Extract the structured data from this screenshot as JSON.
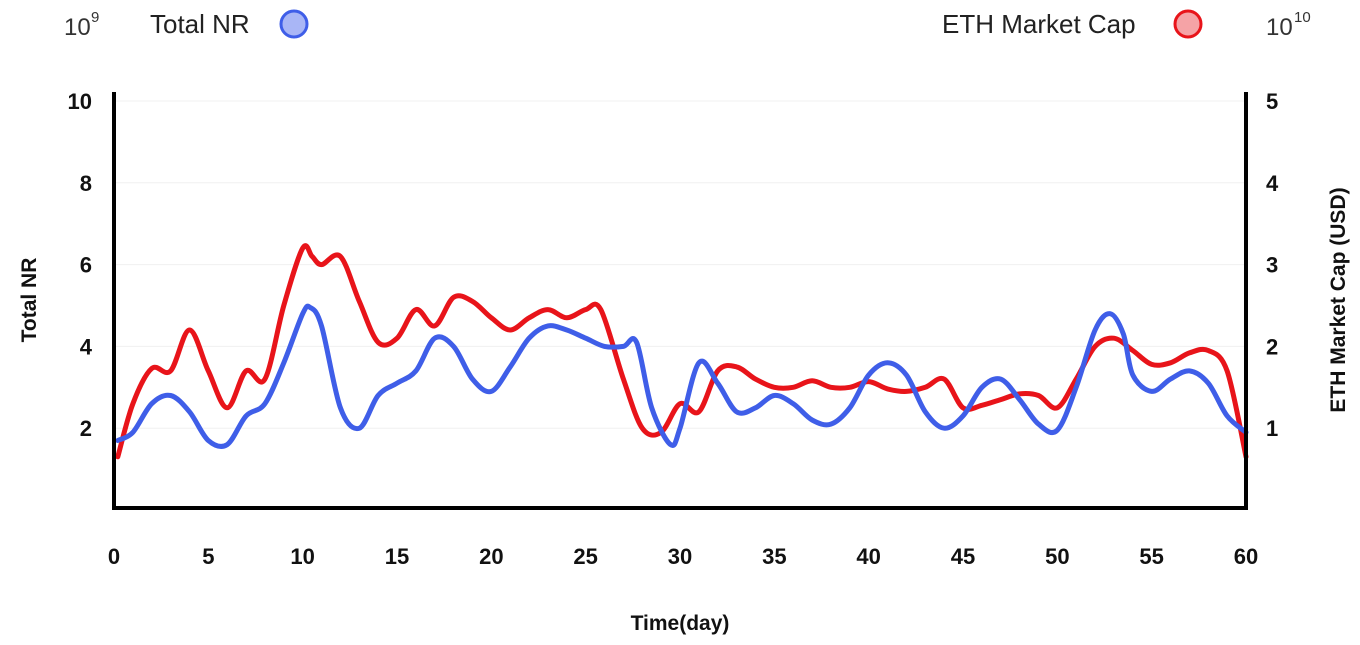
{
  "chart_data": {
    "type": "line",
    "xlabel": "Time(day)",
    "ylabel_left": "Total NR",
    "ylabel_right": "ETH Market Cap (USD)",
    "left_exponent": {
      "base": "10",
      "power": "9"
    },
    "right_exponent": {
      "base": "10",
      "power": "10"
    },
    "xlim": [
      0,
      60
    ],
    "ylim_left": [
      0,
      10
    ],
    "ylim_right": [
      0,
      5
    ],
    "x_ticks": [
      "0",
      "5",
      "10",
      "15",
      "20",
      "25",
      "30",
      "35",
      "40",
      "45",
      "50",
      "55",
      "60"
    ],
    "y_ticks_left": [
      "2",
      "4",
      "6",
      "8",
      "10"
    ],
    "y_ticks_right": [
      "1",
      "2",
      "3",
      "4",
      "5"
    ],
    "grid": "horizontal, faint",
    "legend_placement": "top",
    "series": [
      {
        "name": "Total NR",
        "axis": "left",
        "color": "#3f5ee8",
        "marker_fill": "#a9b6f6",
        "points": [
          [
            0.2,
            1.7
          ],
          [
            1,
            1.9
          ],
          [
            2,
            2.6
          ],
          [
            3,
            2.8
          ],
          [
            4,
            2.4
          ],
          [
            5,
            1.7
          ],
          [
            6,
            1.6
          ],
          [
            7,
            2.3
          ],
          [
            8,
            2.6
          ],
          [
            9,
            3.6
          ],
          [
            10,
            4.8
          ],
          [
            10.4,
            4.95
          ],
          [
            11,
            4.5
          ],
          [
            12,
            2.5
          ],
          [
            13,
            2.0
          ],
          [
            14,
            2.8
          ],
          [
            15,
            3.1
          ],
          [
            16,
            3.4
          ],
          [
            17,
            4.2
          ],
          [
            18,
            4.0
          ],
          [
            19,
            3.2
          ],
          [
            20,
            2.9
          ],
          [
            21,
            3.5
          ],
          [
            22,
            4.2
          ],
          [
            23,
            4.5
          ],
          [
            24,
            4.4
          ],
          [
            25,
            4.2
          ],
          [
            26,
            4.0
          ],
          [
            27,
            4.0
          ],
          [
            27.7,
            4.1
          ],
          [
            28.5,
            2.5
          ],
          [
            29.5,
            1.6
          ],
          [
            30,
            2.0
          ],
          [
            31,
            3.6
          ],
          [
            32,
            3.1
          ],
          [
            33,
            2.4
          ],
          [
            34,
            2.5
          ],
          [
            35,
            2.8
          ],
          [
            36,
            2.6
          ],
          [
            37,
            2.2
          ],
          [
            38,
            2.1
          ],
          [
            39,
            2.5
          ],
          [
            40,
            3.3
          ],
          [
            41,
            3.6
          ],
          [
            42,
            3.3
          ],
          [
            43,
            2.4
          ],
          [
            44,
            2.0
          ],
          [
            45,
            2.3
          ],
          [
            46,
            3.0
          ],
          [
            47,
            3.2
          ],
          [
            48,
            2.7
          ],
          [
            49,
            2.1
          ],
          [
            50,
            1.95
          ],
          [
            51,
            3.0
          ],
          [
            52,
            4.4
          ],
          [
            52.8,
            4.8
          ],
          [
            53.5,
            4.3
          ],
          [
            54,
            3.3
          ],
          [
            55,
            2.9
          ],
          [
            56,
            3.2
          ],
          [
            57,
            3.4
          ],
          [
            58,
            3.1
          ],
          [
            59,
            2.3
          ],
          [
            60,
            1.9
          ]
        ]
      },
      {
        "name": "ETH Market Cap",
        "axis": "right",
        "color": "#e8141a",
        "marker_fill": "#f5a3a6",
        "points": [
          [
            0.2,
            0.65
          ],
          [
            1,
            1.3
          ],
          [
            2,
            1.73
          ],
          [
            3,
            1.7
          ],
          [
            4,
            2.2
          ],
          [
            5,
            1.7
          ],
          [
            6,
            1.25
          ],
          [
            7,
            1.7
          ],
          [
            8,
            1.6
          ],
          [
            9,
            2.5
          ],
          [
            10,
            3.2
          ],
          [
            10.5,
            3.1
          ],
          [
            11,
            3.0
          ],
          [
            12,
            3.1
          ],
          [
            13,
            2.55
          ],
          [
            14,
            2.05
          ],
          [
            15,
            2.1
          ],
          [
            16,
            2.45
          ],
          [
            17,
            2.25
          ],
          [
            18,
            2.6
          ],
          [
            19,
            2.55
          ],
          [
            20,
            2.35
          ],
          [
            21,
            2.2
          ],
          [
            22,
            2.35
          ],
          [
            23,
            2.45
          ],
          [
            24,
            2.35
          ],
          [
            25,
            2.45
          ],
          [
            25.8,
            2.45
          ],
          [
            27,
            1.6
          ],
          [
            28,
            1.0
          ],
          [
            29,
            0.95
          ],
          [
            30,
            1.3
          ],
          [
            31,
            1.2
          ],
          [
            32,
            1.7
          ],
          [
            33,
            1.75
          ],
          [
            34,
            1.6
          ],
          [
            35,
            1.5
          ],
          [
            36,
            1.5
          ],
          [
            37,
            1.58
          ],
          [
            38,
            1.5
          ],
          [
            39,
            1.5
          ],
          [
            40,
            1.57
          ],
          [
            41,
            1.48
          ],
          [
            42,
            1.45
          ],
          [
            43,
            1.5
          ],
          [
            44,
            1.6
          ],
          [
            45,
            1.25
          ],
          [
            46,
            1.28
          ],
          [
            47,
            1.35
          ],
          [
            48,
            1.42
          ],
          [
            49,
            1.4
          ],
          [
            50,
            1.25
          ],
          [
            51,
            1.6
          ],
          [
            52,
            2.0
          ],
          [
            53,
            2.1
          ],
          [
            54,
            1.95
          ],
          [
            55,
            1.78
          ],
          [
            56,
            1.8
          ],
          [
            57,
            1.92
          ],
          [
            58,
            1.95
          ],
          [
            59,
            1.7
          ],
          [
            60,
            0.65
          ]
        ]
      }
    ]
  }
}
